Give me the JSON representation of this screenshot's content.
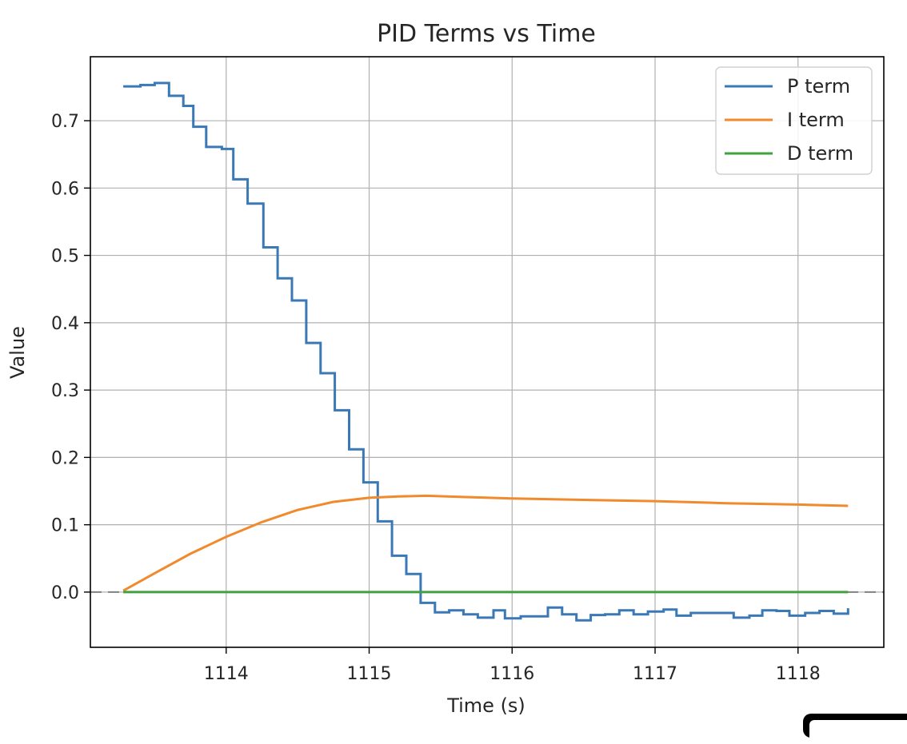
{
  "chart_data": {
    "type": "line",
    "title": "PID Terms vs Time",
    "xlabel": "Time (s)",
    "ylabel": "Value",
    "xlim": [
      1113.05,
      1118.6
    ],
    "ylim": [
      -0.082,
      0.795
    ],
    "xticks": [
      1114,
      1115,
      1116,
      1117,
      1118
    ],
    "yticks": [
      0.0,
      0.1,
      0.2,
      0.3,
      0.4,
      0.5,
      0.6,
      0.7
    ],
    "ytick_labels": [
      "0.0",
      "0.1",
      "0.2",
      "0.3",
      "0.4",
      "0.5",
      "0.6",
      "0.7"
    ],
    "grid": true,
    "legend": "top-right",
    "reference_line": {
      "y": 0.0,
      "style": "dashed",
      "color": "#808080"
    },
    "series": [
      {
        "name": "P term",
        "color": "#3a78b6",
        "step": true,
        "points": [
          [
            1113.28,
            0.751
          ],
          [
            1113.4,
            0.753
          ],
          [
            1113.5,
            0.756
          ],
          [
            1113.6,
            0.737
          ],
          [
            1113.7,
            0.722
          ],
          [
            1113.77,
            0.691
          ],
          [
            1113.86,
            0.661
          ],
          [
            1113.97,
            0.658
          ],
          [
            1114.05,
            0.613
          ],
          [
            1114.15,
            0.577
          ],
          [
            1114.26,
            0.512
          ],
          [
            1114.36,
            0.466
          ],
          [
            1114.46,
            0.433
          ],
          [
            1114.56,
            0.37
          ],
          [
            1114.66,
            0.325
          ],
          [
            1114.76,
            0.27
          ],
          [
            1114.86,
            0.212
          ],
          [
            1114.96,
            0.163
          ],
          [
            1115.06,
            0.105
          ],
          [
            1115.16,
            0.054
          ],
          [
            1115.26,
            0.027
          ],
          [
            1115.36,
            -0.016
          ],
          [
            1115.46,
            -0.03
          ],
          [
            1115.56,
            -0.027
          ],
          [
            1115.66,
            -0.033
          ],
          [
            1115.76,
            -0.038
          ],
          [
            1115.87,
            -0.027
          ],
          [
            1115.95,
            -0.039
          ],
          [
            1116.06,
            -0.036
          ],
          [
            1116.16,
            -0.036
          ],
          [
            1116.25,
            -0.023
          ],
          [
            1116.35,
            -0.033
          ],
          [
            1116.45,
            -0.042
          ],
          [
            1116.55,
            -0.034
          ],
          [
            1116.65,
            -0.033
          ],
          [
            1116.75,
            -0.027
          ],
          [
            1116.85,
            -0.033
          ],
          [
            1116.95,
            -0.029
          ],
          [
            1117.06,
            -0.026
          ],
          [
            1117.15,
            -0.035
          ],
          [
            1117.25,
            -0.031
          ],
          [
            1117.35,
            -0.031
          ],
          [
            1117.45,
            -0.031
          ],
          [
            1117.55,
            -0.038
          ],
          [
            1117.66,
            -0.035
          ],
          [
            1117.75,
            -0.027
          ],
          [
            1117.85,
            -0.028
          ],
          [
            1117.94,
            -0.035
          ],
          [
            1118.05,
            -0.031
          ],
          [
            1118.15,
            -0.028
          ],
          [
            1118.25,
            -0.032
          ],
          [
            1118.35,
            -0.024
          ]
        ]
      },
      {
        "name": "I term",
        "color": "#f08a2c",
        "step": false,
        "points": [
          [
            1113.28,
            0.002
          ],
          [
            1113.5,
            0.028
          ],
          [
            1113.75,
            0.057
          ],
          [
            1114.0,
            0.082
          ],
          [
            1114.25,
            0.104
          ],
          [
            1114.5,
            0.122
          ],
          [
            1114.75,
            0.134
          ],
          [
            1115.0,
            0.14
          ],
          [
            1115.2,
            0.142
          ],
          [
            1115.4,
            0.143
          ],
          [
            1115.7,
            0.141
          ],
          [
            1116.0,
            0.139
          ],
          [
            1116.5,
            0.137
          ],
          [
            1117.0,
            0.135
          ],
          [
            1117.5,
            0.132
          ],
          [
            1118.0,
            0.13
          ],
          [
            1118.35,
            0.128
          ]
        ]
      },
      {
        "name": "D term",
        "color": "#3fa13f",
        "step": false,
        "points": [
          [
            1113.28,
            0.0
          ],
          [
            1118.35,
            0.0
          ]
        ]
      }
    ]
  }
}
